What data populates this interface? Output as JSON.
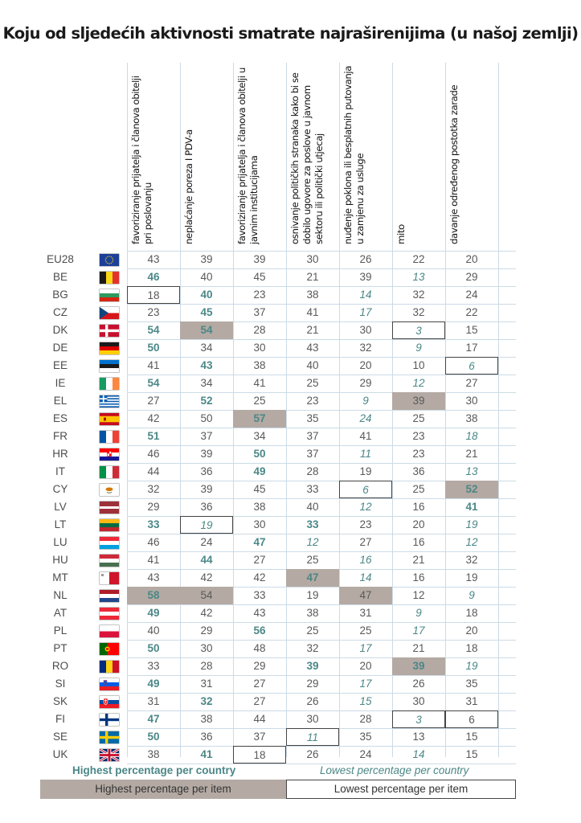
{
  "title": "Koju od sljedećih aktivnosti smatrate najraširenijima (u našoj zemlji)",
  "columns": [
    "favoriziranje prijatelja i članova obitelji pri poslovanju",
    "neplaćanje poreza I PDV-a",
    "favoriziranje prijatelja i članova obitelji u javnim institucijama",
    "osnivanje političkih stranaka kako bi se dobilo ugovore za poslove u javnom sektoru ili politički utjecaj",
    "nuđenje poklona ili besplatnih putovanja u zamjenu za usluge",
    "mito",
    "davanje određenog postotka zarade"
  ],
  "rows": [
    {
      "code": "EU28",
      "flag": "eu-flag-icon",
      "values": [
        43,
        39,
        39,
        30,
        26,
        22,
        20
      ]
    },
    {
      "code": "BE",
      "flag": "belgium-flag-icon",
      "values": [
        46,
        40,
        45,
        21,
        39,
        13,
        29
      ]
    },
    {
      "code": "BG",
      "flag": "bulgaria-flag-icon",
      "values": [
        18,
        40,
        23,
        38,
        14,
        32,
        24
      ]
    },
    {
      "code": "CZ",
      "flag": "czechia-flag-icon",
      "values": [
        23,
        45,
        37,
        41,
        17,
        32,
        22
      ]
    },
    {
      "code": "DK",
      "flag": "denmark-flag-icon",
      "values": [
        54,
        54,
        28,
        21,
        30,
        3,
        15
      ]
    },
    {
      "code": "DE",
      "flag": "germany-flag-icon",
      "values": [
        50,
        34,
        30,
        43,
        32,
        9,
        17
      ]
    },
    {
      "code": "EE",
      "flag": "estonia-flag-icon",
      "values": [
        41,
        43,
        38,
        40,
        20,
        10,
        6
      ]
    },
    {
      "code": "IE",
      "flag": "ireland-flag-icon",
      "values": [
        54,
        34,
        41,
        25,
        29,
        12,
        27
      ]
    },
    {
      "code": "EL",
      "flag": "greece-flag-icon",
      "values": [
        27,
        52,
        25,
        23,
        9,
        39,
        30
      ]
    },
    {
      "code": "ES",
      "flag": "spain-flag-icon",
      "values": [
        42,
        50,
        57,
        35,
        24,
        25,
        38
      ]
    },
    {
      "code": "FR",
      "flag": "france-flag-icon",
      "values": [
        51,
        37,
        34,
        37,
        41,
        23,
        18
      ]
    },
    {
      "code": "HR",
      "flag": "croatia-flag-icon",
      "values": [
        46,
        39,
        50,
        37,
        11,
        23,
        21
      ]
    },
    {
      "code": "IT",
      "flag": "italy-flag-icon",
      "values": [
        44,
        36,
        49,
        28,
        19,
        36,
        13
      ]
    },
    {
      "code": "CY",
      "flag": "cyprus-flag-icon",
      "values": [
        32,
        39,
        45,
        33,
        6,
        25,
        52
      ]
    },
    {
      "code": "LV",
      "flag": "latvia-flag-icon",
      "values": [
        29,
        36,
        38,
        40,
        12,
        16,
        41
      ]
    },
    {
      "code": "LT",
      "flag": "lithuania-flag-icon",
      "values": [
        33,
        19,
        30,
        33,
        23,
        20,
        19
      ]
    },
    {
      "code": "LU",
      "flag": "luxembourg-flag-icon",
      "values": [
        46,
        24,
        47,
        12,
        27,
        16,
        12
      ]
    },
    {
      "code": "HU",
      "flag": "hungary-flag-icon",
      "values": [
        41,
        44,
        27,
        25,
        16,
        21,
        32
      ]
    },
    {
      "code": "MT",
      "flag": "malta-flag-icon",
      "values": [
        43,
        42,
        42,
        47,
        14,
        16,
        19
      ]
    },
    {
      "code": "NL",
      "flag": "netherlands-flag-icon",
      "values": [
        58,
        54,
        33,
        19,
        47,
        12,
        9
      ]
    },
    {
      "code": "AT",
      "flag": "austria-flag-icon",
      "values": [
        49,
        42,
        43,
        38,
        31,
        9,
        18
      ]
    },
    {
      "code": "PL",
      "flag": "poland-flag-icon",
      "values": [
        40,
        29,
        56,
        25,
        25,
        17,
        20
      ]
    },
    {
      "code": "PT",
      "flag": "portugal-flag-icon",
      "values": [
        50,
        30,
        48,
        32,
        17,
        21,
        18
      ]
    },
    {
      "code": "RO",
      "flag": "romania-flag-icon",
      "values": [
        33,
        28,
        29,
        39,
        20,
        39,
        19
      ]
    },
    {
      "code": "SI",
      "flag": "slovenia-flag-icon",
      "values": [
        49,
        31,
        27,
        29,
        17,
        26,
        35
      ]
    },
    {
      "code": "SK",
      "flag": "slovakia-flag-icon",
      "values": [
        31,
        32,
        27,
        26,
        15,
        30,
        31
      ]
    },
    {
      "code": "FI",
      "flag": "finland-flag-icon",
      "values": [
        47,
        38,
        44,
        30,
        28,
        3,
        6
      ]
    },
    {
      "code": "SE",
      "flag": "sweden-flag-icon",
      "values": [
        50,
        36,
        37,
        11,
        35,
        13,
        15
      ]
    },
    {
      "code": "UK",
      "flag": "uk-flag-icon",
      "values": [
        38,
        41,
        18,
        26,
        24,
        14,
        15
      ]
    }
  ],
  "legend": {
    "highest_per_country": "Highest percentage per country",
    "lowest_per_country": "Lowest percentage per country",
    "highest_per_item": "Highest percentage per item",
    "lowest_per_item": "Lowest percentage per item"
  },
  "colors": {
    "highest_per_country_text": "#4b8787",
    "lowest_per_country_text": "#4b8787",
    "highest_per_item_fill": "#b4aaa3",
    "lowest_per_item_border": "#444444",
    "grid_lines": "#ccdbe6"
  }
}
